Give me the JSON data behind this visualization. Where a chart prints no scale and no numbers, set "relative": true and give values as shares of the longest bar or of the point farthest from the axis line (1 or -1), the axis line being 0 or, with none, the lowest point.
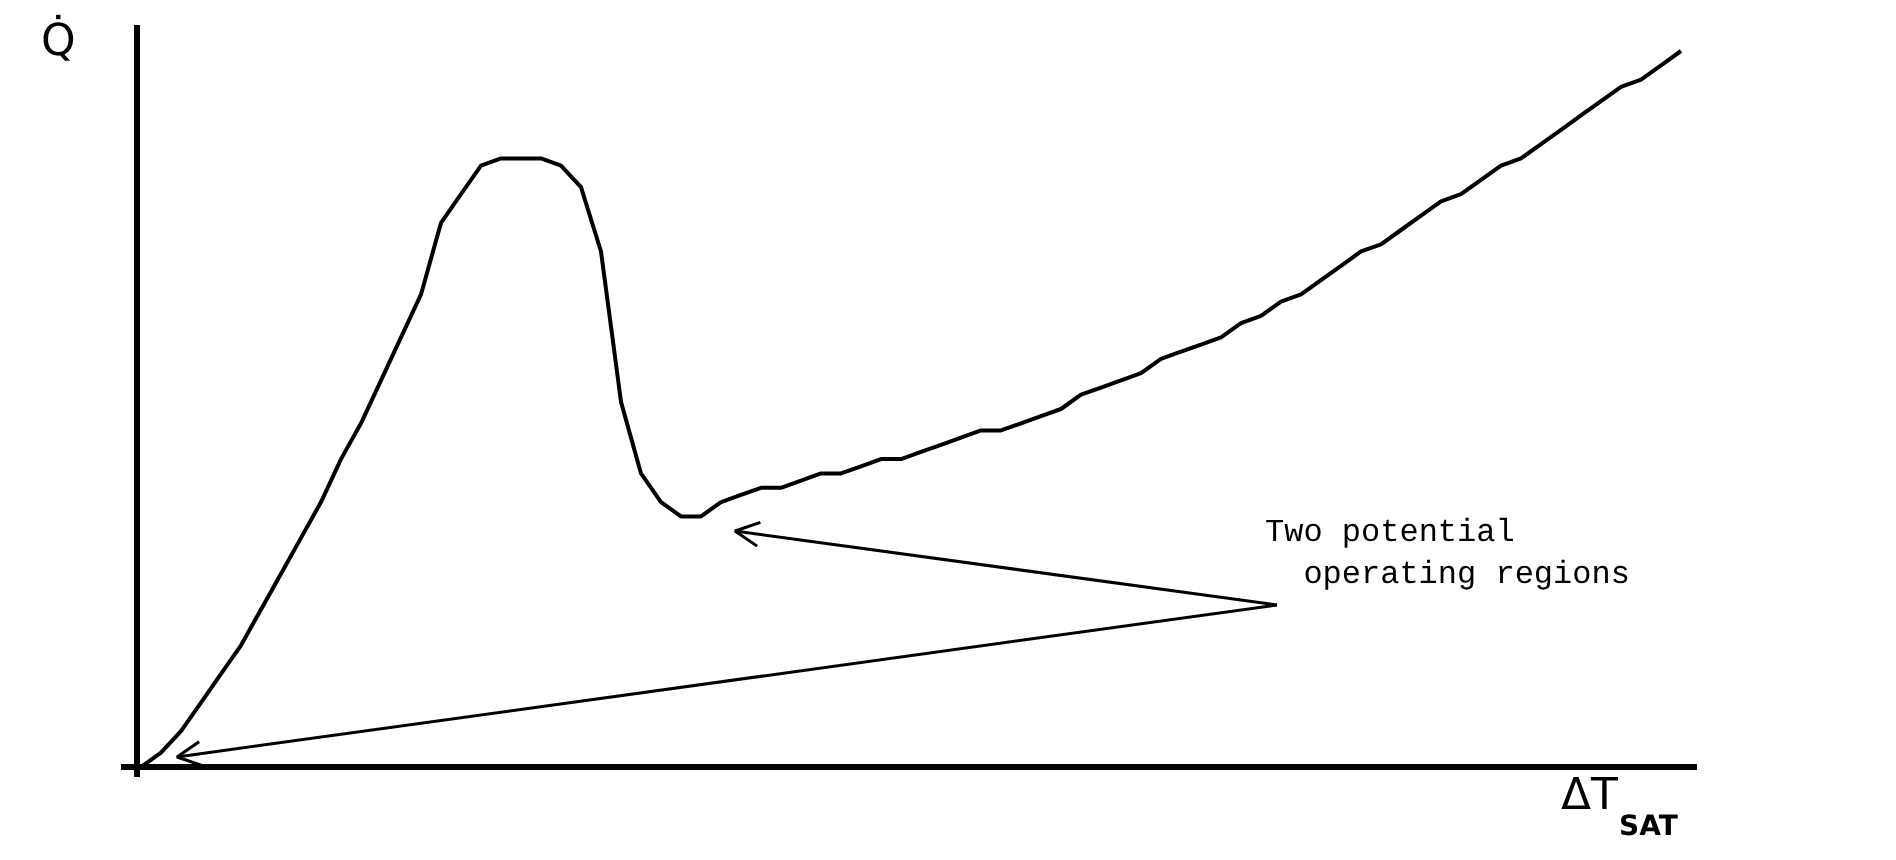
{
  "chart_data": {
    "type": "line",
    "relative": true,
    "tick_labels": false,
    "marker": "none",
    "line_style": "solid",
    "xlabel": "ΔT$_{SAT}$",
    "ylabel": "Q̇",
    "annotations": [
      "Two potential\n  operating regions"
    ],
    "categories": [
      null,
      null,
      null,
      null,
      null,
      null,
      null,
      null,
      null,
      null,
      null,
      null,
      null,
      null,
      null,
      null,
      null,
      null,
      null,
      null,
      null,
      null,
      null,
      null,
      null,
      null,
      null,
      null,
      null,
      null,
      null,
      null,
      null,
      null,
      null,
      null,
      null,
      null,
      null,
      null,
      null,
      null,
      null,
      null,
      null,
      null,
      null,
      null,
      null,
      null,
      null,
      null,
      null,
      null,
      null,
      null,
      null,
      null,
      null,
      null,
      null,
      null,
      null,
      null,
      null,
      null,
      null,
      null,
      null,
      null,
      null,
      null,
      null,
      null,
      null,
      null,
      null,
      null
    ],
    "series": [
      {
        "color": "#000000",
        "values": [
          0,
          0.02,
          0.05,
          0.09,
          0.13,
          0.17,
          0.22,
          0.27,
          0.32,
          0.37,
          0.43,
          0.48,
          0.54,
          0.6,
          0.66,
          0.76,
          0.8,
          0.84,
          0.85,
          0.85,
          0.85,
          0.84,
          0.81,
          0.72,
          0.51,
          0.41,
          0.37,
          0.35,
          0.35,
          0.37,
          0.38,
          0.39,
          0.39,
          0.4,
          0.41,
          0.41,
          0.42,
          0.43,
          0.43,
          0.44,
          0.45,
          0.46,
          0.47,
          0.47,
          0.48,
          0.49,
          0.5,
          0.52,
          0.53,
          0.54,
          0.55,
          0.57,
          0.58,
          0.59,
          0.6,
          0.62,
          0.63,
          0.65,
          0.66,
          0.68,
          0.7,
          0.72,
          0.73,
          0.75,
          0.77,
          0.79,
          0.8,
          0.82,
          0.84,
          0.85,
          0.87,
          0.89,
          0.91,
          0.93,
          0.95,
          0.96,
          0.98,
          1
        ]
      }
    ]
  }
}
